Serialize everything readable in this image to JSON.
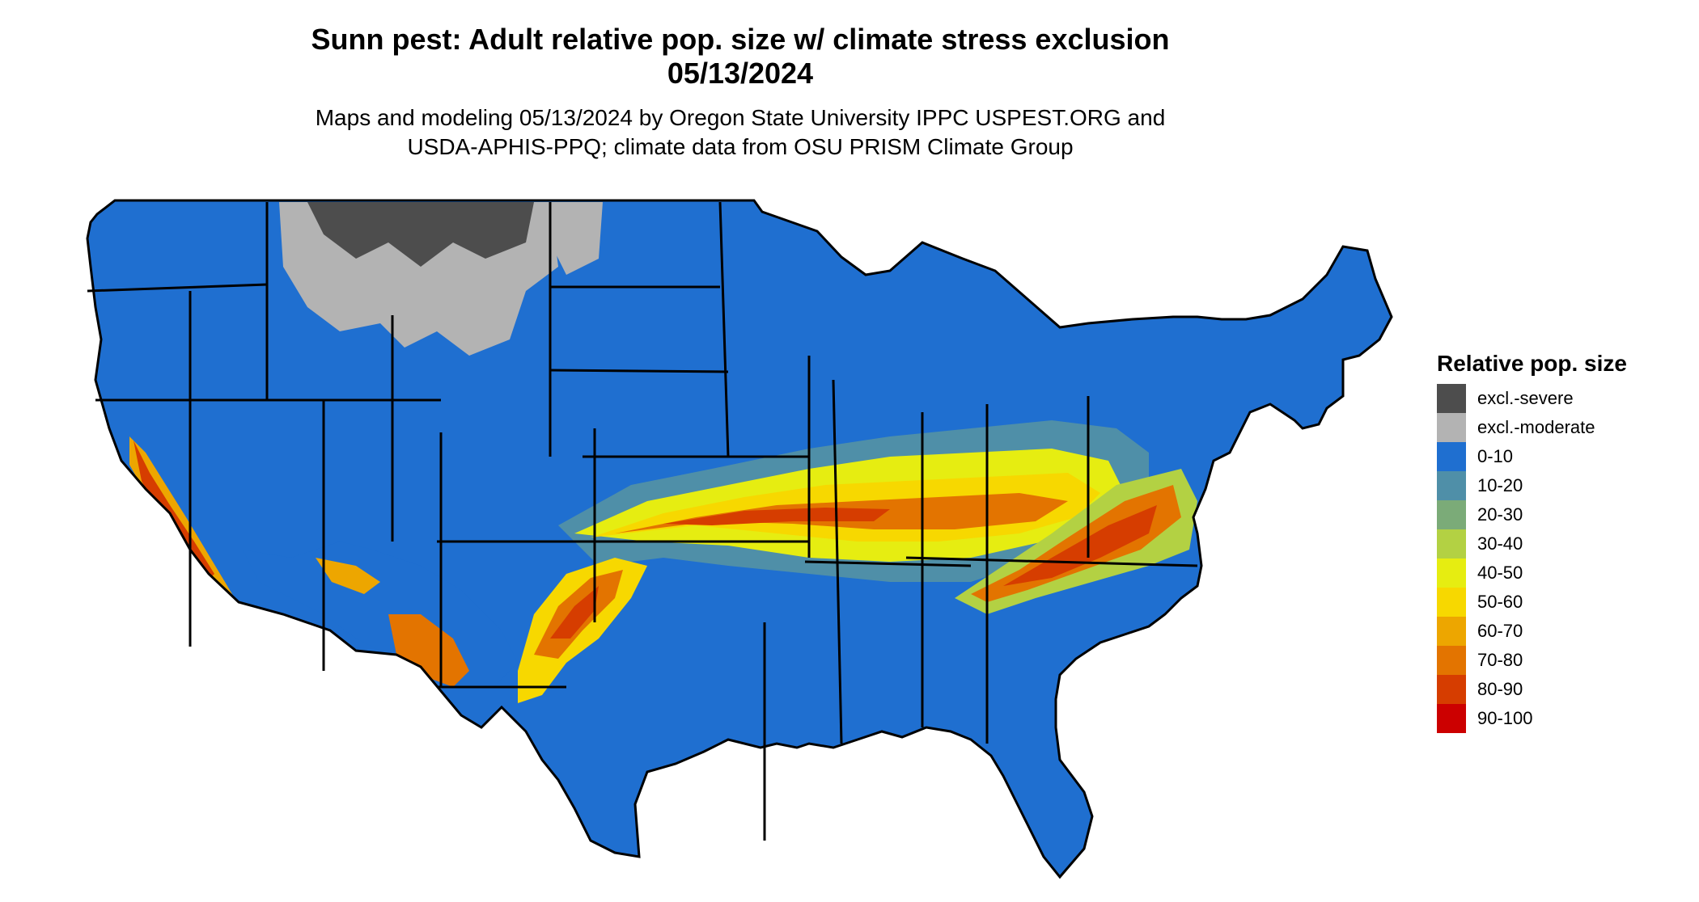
{
  "title": {
    "line1": "Sunn pest: Adult relative pop. size w/ climate stress exclusion",
    "line2": "05/13/2024"
  },
  "subtitle": {
    "line1": "Maps and modeling 05/13/2024 by Oregon State University IPPC USPEST.ORG and",
    "line2": "USDA-APHIS-PPQ; climate data from OSU PRISM Climate Group"
  },
  "legend": {
    "title": "Relative pop. size",
    "items": [
      {
        "label": "excl.-severe",
        "color": "#4d4d4d"
      },
      {
        "label": "excl.-moderate",
        "color": "#b3b3b3"
      },
      {
        "label": "0-10",
        "color": "#1f6fd0"
      },
      {
        "label": "10-20",
        "color": "#4f8fa8"
      },
      {
        "label": "20-30",
        "color": "#7bab78"
      },
      {
        "label": "30-40",
        "color": "#b3d143"
      },
      {
        "label": "40-50",
        "color": "#e6ed11"
      },
      {
        "label": "50-60",
        "color": "#f7d800"
      },
      {
        "label": "60-70",
        "color": "#eda600"
      },
      {
        "label": "70-80",
        "color": "#e37400"
      },
      {
        "label": "80-90",
        "color": "#d63d00"
      },
      {
        "label": "90-100",
        "color": "#cc0000"
      }
    ]
  }
}
